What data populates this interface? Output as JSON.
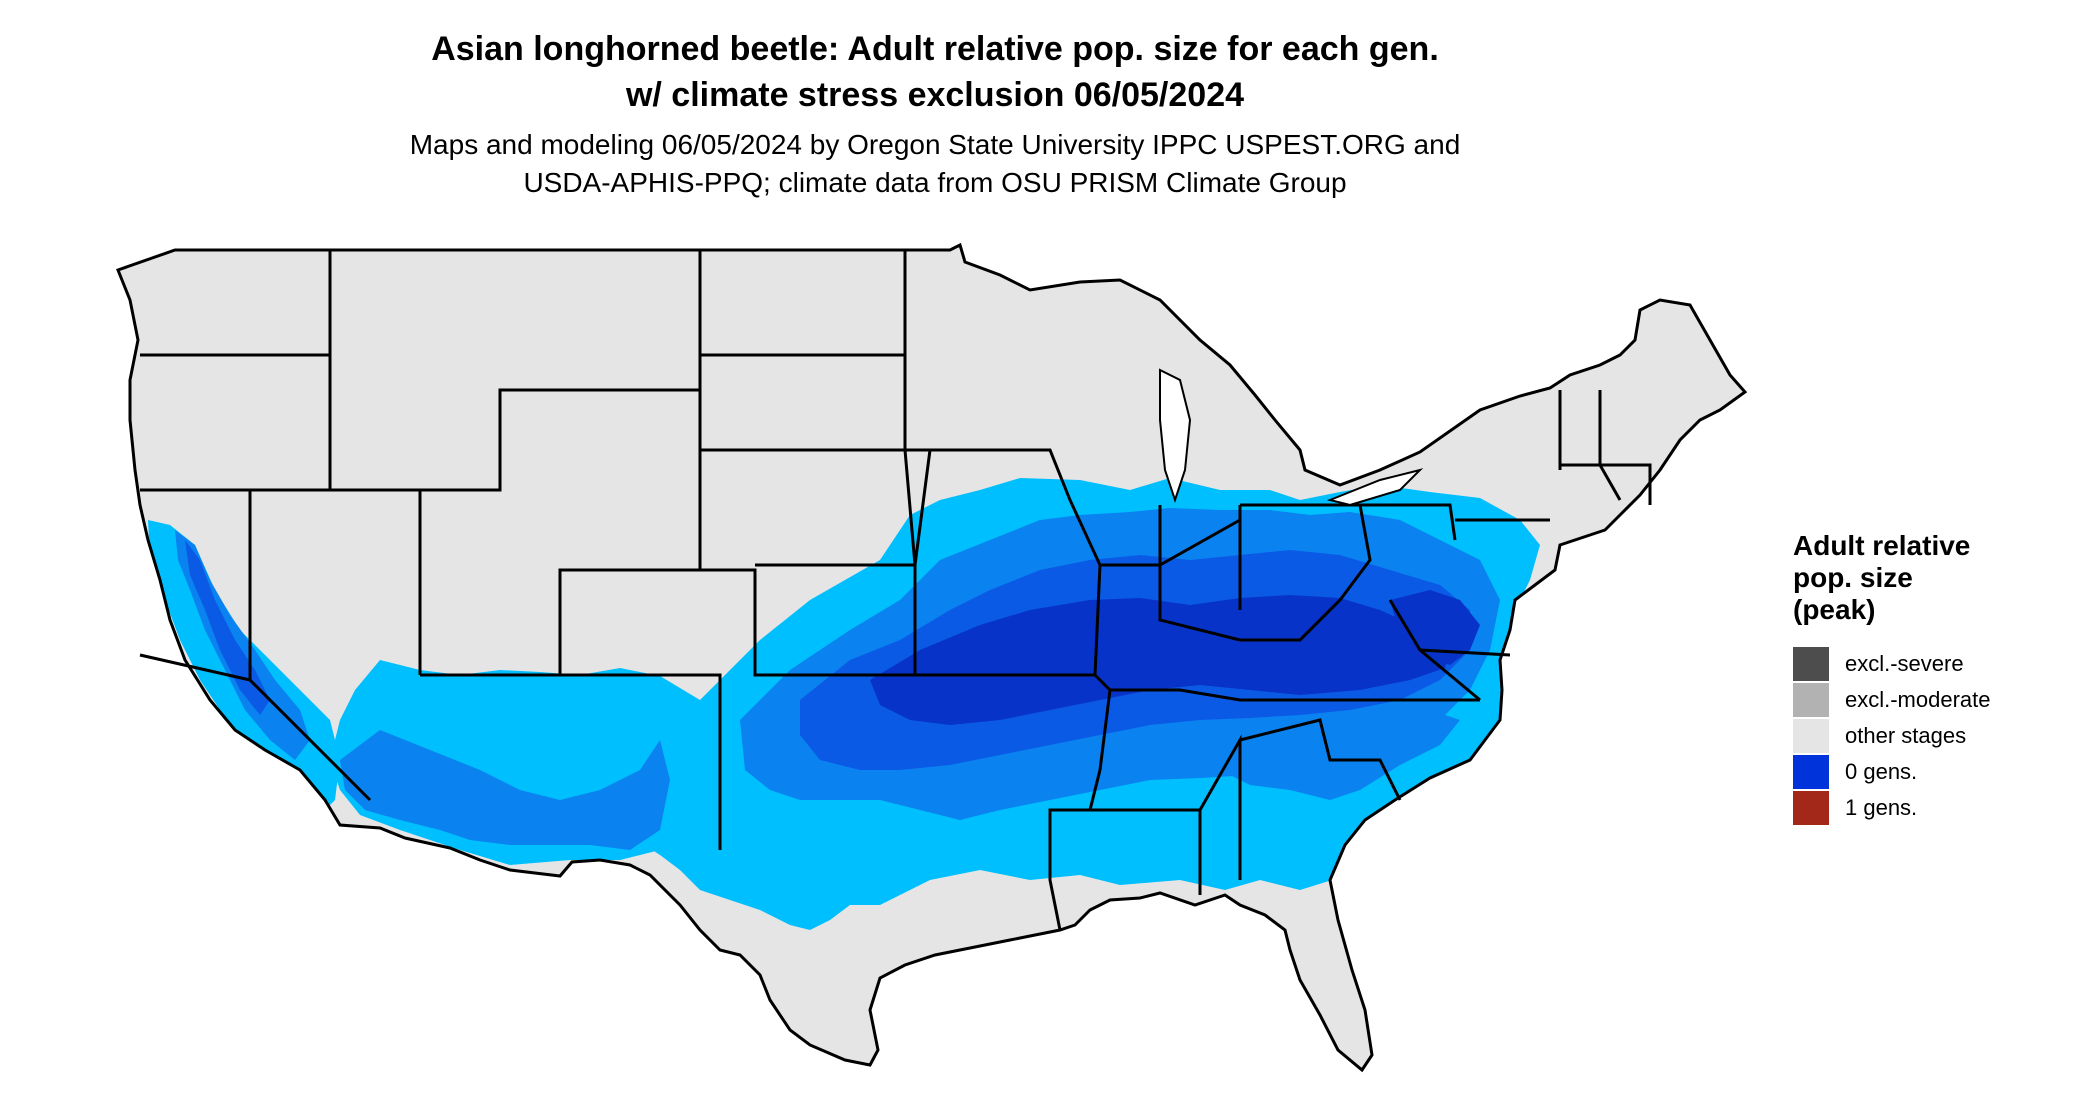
{
  "header": {
    "title_line1": "Asian longhorned beetle: Adult relative pop. size for each gen.",
    "title_line2": "w/ climate stress exclusion 06/05/2024",
    "subtitle_line1": "Maps and modeling 06/05/2024 by Oregon State University IPPC USPEST.ORG and",
    "subtitle_line2": "USDA-APHIS-PPQ; climate data from OSU PRISM Climate Group"
  },
  "legend": {
    "title_line1": "Adult relative",
    "title_line2": "pop. size",
    "title_line3": "(peak)",
    "items": [
      {
        "label": "excl.-severe",
        "color": "#4d4d4d"
      },
      {
        "label": "excl.-moderate",
        "color": "#b2b2b2"
      },
      {
        "label": "other stages",
        "color": "#e5e5e5"
      },
      {
        "label": "0 gens.",
        "color": "#0033d9"
      },
      {
        "label": "1 gens.",
        "color": "#a3281a"
      }
    ]
  },
  "map_colors": {
    "land": "#e5e5e5",
    "light_blue": "#00bfff",
    "mid_blue": "#0a82f0",
    "blue": "#0a5ae6",
    "dark_blue": "#0833c8",
    "border": "#000000"
  }
}
